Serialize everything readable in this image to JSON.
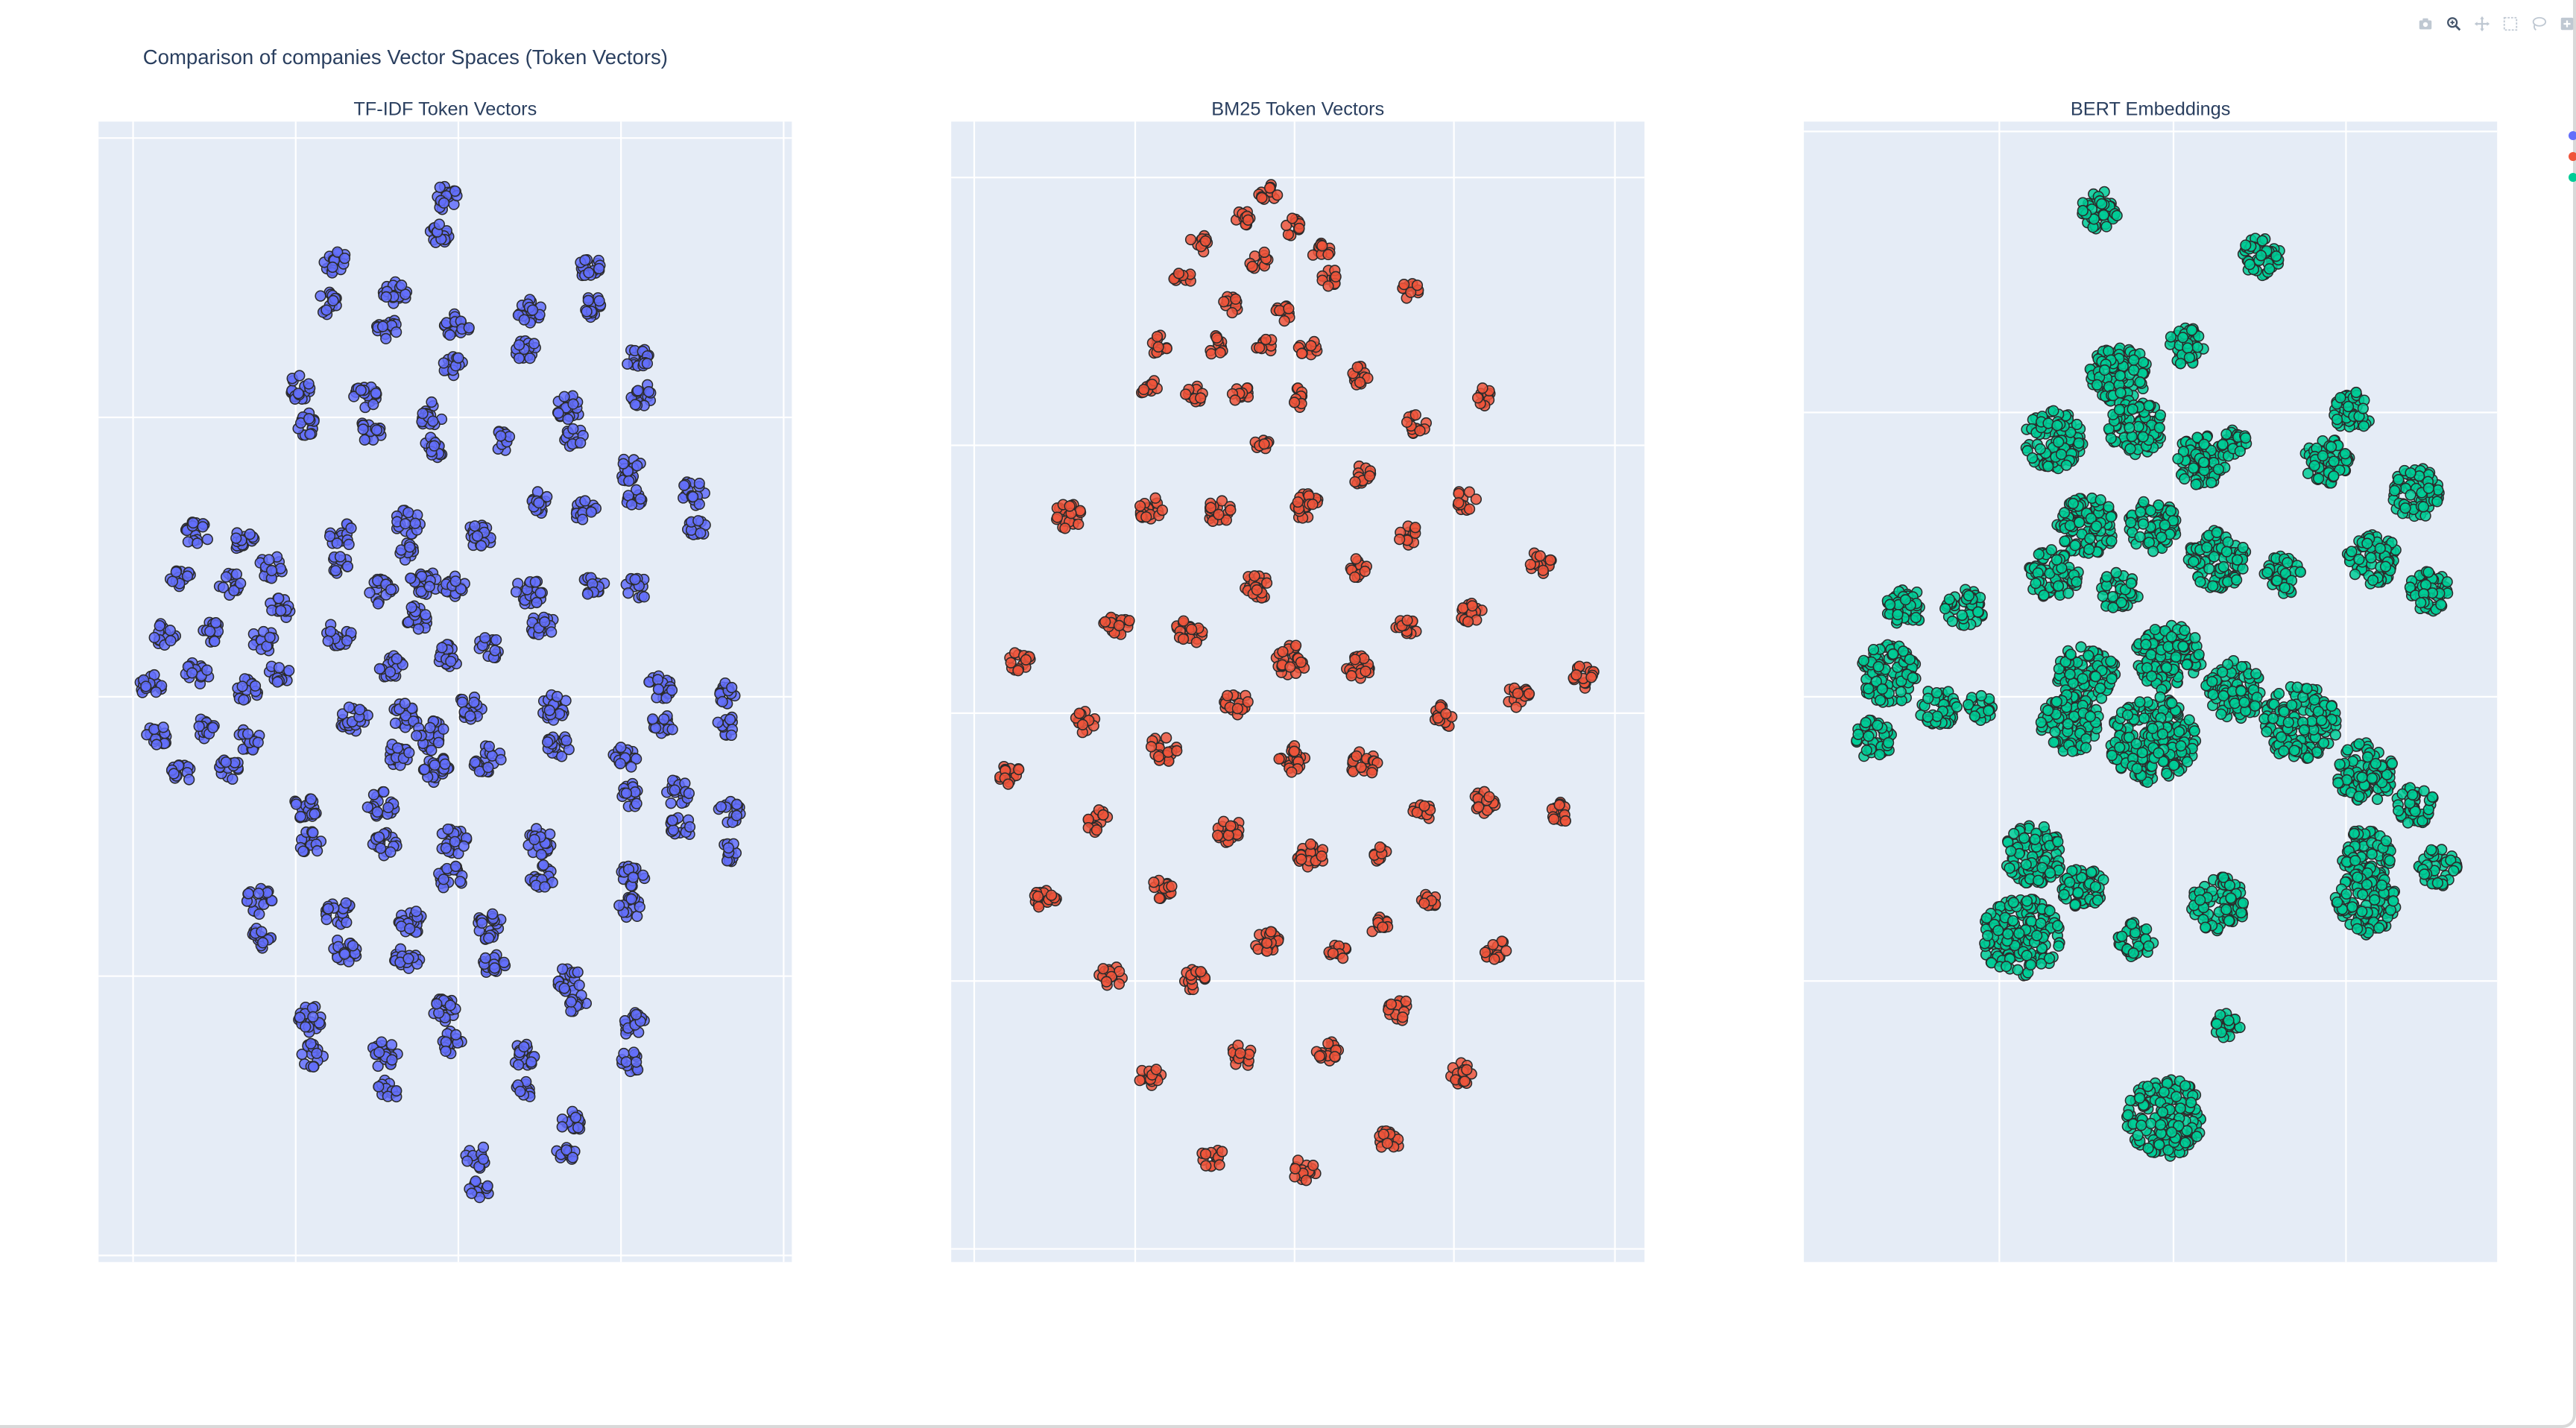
{
  "chart_data": [
    {
      "type": "scatter",
      "title": "TF-IDF Token Vectors",
      "color": "#636efa",
      "clusters": [
        [
          270,
          120,
          14
        ],
        [
          268,
          142,
          12
        ],
        [
          204,
          160,
          13
        ],
        [
          200,
          185,
          12
        ],
        [
          240,
          178,
          13
        ],
        [
          236,
          200,
          12
        ],
        [
          278,
          198,
          13
        ],
        [
          276,
          222,
          12
        ],
        [
          322,
          190,
          13
        ],
        [
          320,
          214,
          12
        ],
        [
          358,
          162,
          13
        ],
        [
          360,
          186,
          12
        ],
        [
          388,
          218,
          13
        ],
        [
          390,
          240,
          12
        ],
        [
          182,
          236,
          13
        ],
        [
          186,
          258,
          12
        ],
        [
          222,
          242,
          13
        ],
        [
          226,
          262,
          12
        ],
        [
          262,
          252,
          13
        ],
        [
          264,
          272,
          12
        ],
        [
          306,
          268,
          11
        ],
        [
          346,
          248,
          13
        ],
        [
          350,
          266,
          11
        ],
        [
          384,
          286,
          13
        ],
        [
          386,
          304,
          11
        ],
        [
          422,
          300,
          13
        ],
        [
          424,
          320,
          11
        ],
        [
          292,
          326,
          13
        ],
        [
          328,
          306,
          12
        ],
        [
          356,
          312,
          12
        ],
        [
          248,
          318,
          13
        ],
        [
          246,
          336,
          10
        ],
        [
          208,
          326,
          13
        ],
        [
          206,
          344,
          10
        ],
        [
          120,
          325,
          13
        ],
        [
          148,
          330,
          12
        ],
        [
          165,
          345,
          12
        ],
        [
          110,
          352,
          12
        ],
        [
          140,
          355,
          12
        ],
        [
          170,
          370,
          12
        ],
        [
          100,
          386,
          12
        ],
        [
          130,
          384,
          12
        ],
        [
          160,
          390,
          12
        ],
        [
          92,
          418,
          13
        ],
        [
          120,
          410,
          12
        ],
        [
          150,
          420,
          12
        ],
        [
          170,
          410,
          11
        ],
        [
          96,
          448,
          12
        ],
        [
          124,
          444,
          12
        ],
        [
          152,
          450,
          12
        ],
        [
          110,
          470,
          12
        ],
        [
          140,
          468,
          12
        ],
        [
          258,
          354,
          14
        ],
        [
          232,
          360,
          13
        ],
        [
          276,
          356,
          12
        ],
        [
          254,
          376,
          13
        ],
        [
          206,
          386,
          13
        ],
        [
          238,
          406,
          13
        ],
        [
          272,
          400,
          13
        ],
        [
          298,
          394,
          12
        ],
        [
          322,
          360,
          14
        ],
        [
          330,
          380,
          13
        ],
        [
          362,
          356,
          12
        ],
        [
          388,
          358,
          12
        ],
        [
          216,
          438,
          15
        ],
        [
          246,
          436,
          14
        ],
        [
          262,
          448,
          16
        ],
        [
          286,
          430,
          13
        ],
        [
          296,
          462,
          15
        ],
        [
          266,
          468,
          14
        ],
        [
          242,
          460,
          13
        ],
        [
          338,
          430,
          14
        ],
        [
          340,
          454,
          13
        ],
        [
          402,
          418,
          13
        ],
        [
          404,
          440,
          12
        ],
        [
          444,
          422,
          12
        ],
        [
          442,
          442,
          11
        ],
        [
          380,
          462,
          13
        ],
        [
          384,
          484,
          12
        ],
        [
          412,
          482,
          13
        ],
        [
          414,
          504,
          12
        ],
        [
          444,
          494,
          12
        ],
        [
          444,
          518,
          11
        ],
        [
          186,
          490,
          14
        ],
        [
          188,
          512,
          13
        ],
        [
          232,
          490,
          14
        ],
        [
          234,
          514,
          13
        ],
        [
          276,
          512,
          14
        ],
        [
          274,
          534,
          13
        ],
        [
          328,
          512,
          14
        ],
        [
          330,
          534,
          13
        ],
        [
          158,
          548,
          14
        ],
        [
          160,
          570,
          12
        ],
        [
          206,
          556,
          14
        ],
        [
          210,
          578,
          13
        ],
        [
          250,
          562,
          14
        ],
        [
          248,
          584,
          13
        ],
        [
          298,
          564,
          14
        ],
        [
          300,
          588,
          13
        ],
        [
          386,
          532,
          13
        ],
        [
          384,
          552,
          12
        ],
        [
          346,
          596,
          13
        ],
        [
          352,
          612,
          11
        ],
        [
          188,
          620,
          14
        ],
        [
          190,
          642,
          12
        ],
        [
          234,
          642,
          14
        ],
        [
          236,
          664,
          12
        ],
        [
          272,
          614,
          14
        ],
        [
          274,
          634,
          12
        ],
        [
          318,
          642,
          13
        ],
        [
          320,
          662,
          11
        ],
        [
          386,
          624,
          13
        ],
        [
          384,
          646,
          11
        ],
        [
          348,
          682,
          12
        ],
        [
          344,
          702,
          11
        ],
        [
          290,
          704,
          12
        ],
        [
          292,
          724,
          11
        ]
      ]
    },
    {
      "type": "scatter",
      "title": "BM25 Token Vectors",
      "color": "#ef553b",
      "clusters": [
        [
          772,
          118,
          10
        ],
        [
          758,
          132,
          10
        ],
        [
          786,
          138,
          10
        ],
        [
          730,
          148,
          10
        ],
        [
          766,
          158,
          10
        ],
        [
          804,
          152,
          10
        ],
        [
          720,
          168,
          10
        ],
        [
          750,
          185,
          10
        ],
        [
          780,
          190,
          10
        ],
        [
          810,
          170,
          10
        ],
        [
          858,
          176,
          10
        ],
        [
          706,
          210,
          10
        ],
        [
          740,
          210,
          10
        ],
        [
          770,
          210,
          10
        ],
        [
          796,
          212,
          10
        ],
        [
          828,
          228,
          11
        ],
        [
          700,
          236,
          10
        ],
        [
          726,
          240,
          10
        ],
        [
          756,
          240,
          10
        ],
        [
          790,
          242,
          10
        ],
        [
          862,
          258,
          11
        ],
        [
          904,
          242,
          10
        ],
        [
          768,
          270,
          8
        ],
        [
          650,
          314,
          14
        ],
        [
          700,
          308,
          14
        ],
        [
          742,
          310,
          14
        ],
        [
          795,
          308,
          14
        ],
        [
          828,
          288,
          11
        ],
        [
          892,
          304,
          11
        ],
        [
          858,
          326,
          11
        ],
        [
          826,
          346,
          11
        ],
        [
          938,
          342,
          12
        ],
        [
          680,
          380,
          14
        ],
        [
          724,
          384,
          14
        ],
        [
          766,
          356,
          14
        ],
        [
          786,
          402,
          16
        ],
        [
          826,
          406,
          14
        ],
        [
          856,
          382,
          11
        ],
        [
          896,
          374,
          12
        ],
        [
          620,
          402,
          12
        ],
        [
          752,
          428,
          13
        ],
        [
          660,
          440,
          12
        ],
        [
          708,
          456,
          14
        ],
        [
          786,
          462,
          14
        ],
        [
          830,
          464,
          14
        ],
        [
          878,
          436,
          12
        ],
        [
          924,
          424,
          12
        ],
        [
          964,
          412,
          12
        ],
        [
          614,
          470,
          12
        ],
        [
          668,
          500,
          12
        ],
        [
          708,
          540,
          12
        ],
        [
          748,
          506,
          14
        ],
        [
          798,
          520,
          14
        ],
        [
          838,
          518,
          10
        ],
        [
          866,
          494,
          10
        ],
        [
          904,
          488,
          12
        ],
        [
          950,
          494,
          12
        ],
        [
          636,
          546,
          12
        ],
        [
          676,
          594,
          12
        ],
        [
          728,
          596,
          12
        ],
        [
          772,
          572,
          14
        ],
        [
          814,
          580,
          10
        ],
        [
          840,
          564,
          10
        ],
        [
          870,
          546,
          10
        ],
        [
          910,
          578,
          12
        ],
        [
          700,
          656,
          12
        ],
        [
          756,
          642,
          12
        ],
        [
          808,
          640,
          12
        ],
        [
          852,
          614,
          12
        ],
        [
          890,
          654,
          12
        ],
        [
          738,
          704,
          12
        ],
        [
          794,
          712,
          12
        ],
        [
          846,
          694,
          12
        ]
      ]
    },
    {
      "type": "scatter",
      "title": "BERT Embeddings",
      "color": "#00cc96",
      "clusters": [
        [
          1278,
          128,
          20
        ],
        [
          1376,
          156,
          20
        ],
        [
          1290,
          228,
          30
        ],
        [
          1330,
          210,
          20
        ],
        [
          1250,
          268,
          30
        ],
        [
          1300,
          260,
          28
        ],
        [
          1340,
          280,
          26
        ],
        [
          1360,
          270,
          14
        ],
        [
          1270,
          320,
          30
        ],
        [
          1310,
          320,
          26
        ],
        [
          1350,
          340,
          30
        ],
        [
          1390,
          350,
          20
        ],
        [
          1250,
          350,
          26
        ],
        [
          1290,
          360,
          20
        ],
        [
          1416,
          280,
          24
        ],
        [
          1432,
          250,
          20
        ],
        [
          1470,
          300,
          26
        ],
        [
          1444,
          340,
          26
        ],
        [
          1478,
          360,
          22
        ],
        [
          1160,
          370,
          20
        ],
        [
          1196,
          370,
          20
        ],
        [
          1150,
          410,
          30
        ],
        [
          1140,
          450,
          20
        ],
        [
          1180,
          430,
          20
        ],
        [
          1206,
          430,
          14
        ],
        [
          1270,
          410,
          30
        ],
        [
          1320,
          400,
          34
        ],
        [
          1310,
          450,
          44
        ],
        [
          1260,
          440,
          30
        ],
        [
          1360,
          420,
          30
        ],
        [
          1400,
          440,
          38
        ],
        [
          1440,
          470,
          30
        ],
        [
          1470,
          490,
          20
        ],
        [
          1440,
          520,
          26
        ],
        [
          1484,
          528,
          20
        ],
        [
          1238,
          520,
          30
        ],
        [
          1230,
          570,
          40
        ],
        [
          1268,
          540,
          22
        ],
        [
          1300,
          572,
          18
        ],
        [
          1350,
          550,
          28
        ],
        [
          1440,
          550,
          32
        ],
        [
          1356,
          624,
          14
        ],
        [
          1318,
          680,
          40
        ]
      ]
    }
  ],
  "main_title": "Comparison of companies Vector Spaces (Token Vectors)",
  "modebar": [
    "camera-icon",
    "zoom-icon",
    "pan-icon",
    "select-box-icon",
    "lasso-icon",
    "plus-icon"
  ]
}
